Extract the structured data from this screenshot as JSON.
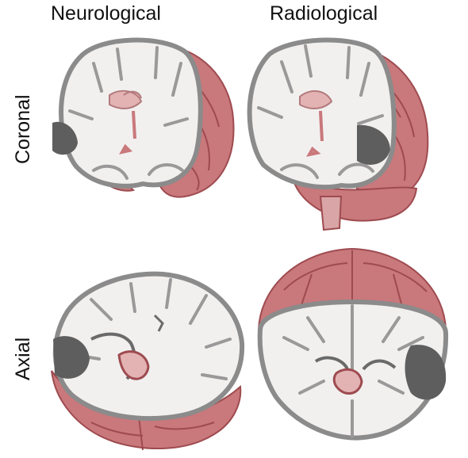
{
  "columns": {
    "left": "Neurological",
    "right": "Radiological"
  },
  "rows": {
    "top": "Coronal",
    "bottom": "Axial"
  },
  "colors": {
    "white_matter": "#f1f0ef",
    "gray_matter": "#8c8b8b",
    "overlay": "#c9787b",
    "overlay_dark": "#9e4b50",
    "ventricle": "#e3b3b4"
  }
}
